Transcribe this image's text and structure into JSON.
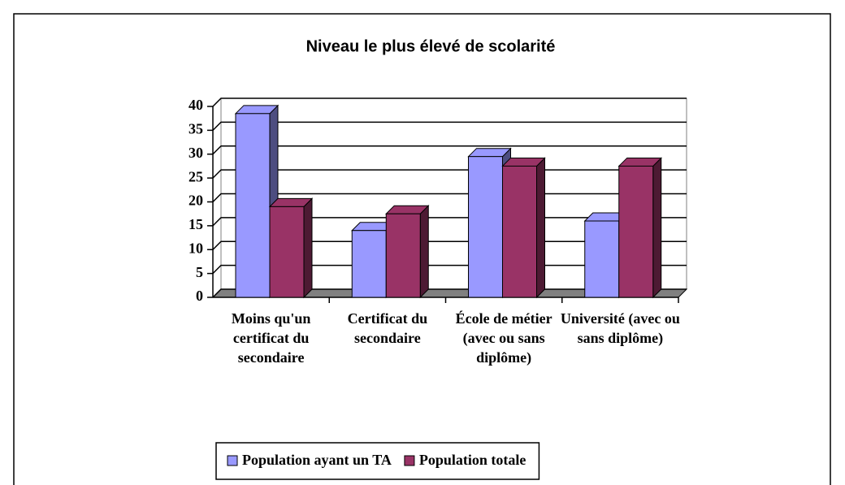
{
  "chart_data": {
    "type": "bar3d",
    "title": "Niveau le plus élevé de scolarité",
    "categories": [
      "Moins qu'un certificat du secondaire",
      "Certificat du secondaire",
      "École de métier (avec ou sans diplôme)",
      "Université (avec ou sans diplôme)"
    ],
    "series": [
      {
        "name": "Population ayant un TA",
        "color": "#9999ff",
        "values": [
          38.5,
          14,
          29.5,
          16
        ]
      },
      {
        "name": "Population totale",
        "color": "#993366",
        "values": [
          19,
          17.5,
          27.5,
          27.5
        ]
      }
    ],
    "ylim": [
      0,
      40
    ],
    "yticks": [
      0,
      5,
      10,
      15,
      20,
      25,
      30,
      35,
      40
    ],
    "grid": true,
    "legend": "bottom"
  }
}
